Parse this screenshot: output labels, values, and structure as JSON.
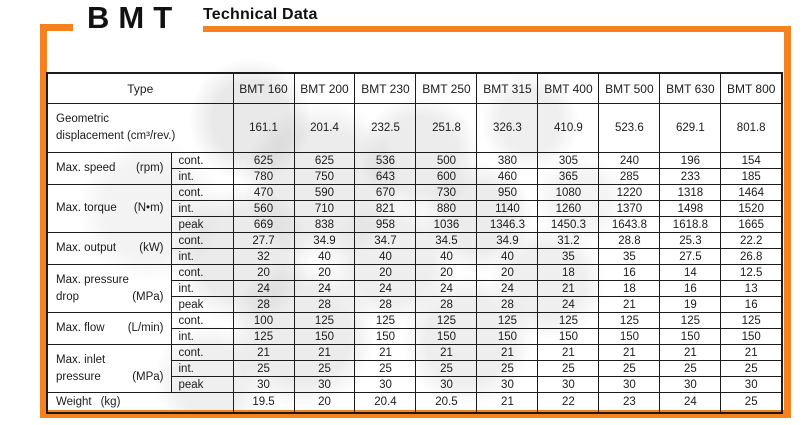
{
  "page": {
    "logo": "BMT",
    "section_title": "Technical Data"
  },
  "colors": {
    "accent": "#F6821F",
    "table_border": "#1b1b1b",
    "text": "#1b1b1b"
  },
  "table": {
    "type_label": "Type",
    "columns": [
      "BMT 160",
      "BMT 200",
      "BMT 230",
      "BMT 250",
      "BMT 315",
      "BMT 400",
      "BMT 500",
      "BMT 630",
      "BMT 800"
    ],
    "groups": [
      {
        "id": "geometric-displacement",
        "lines": [
          "Geometric",
          "displacement (cm³/rev.)"
        ],
        "unit": "",
        "layout": "plain",
        "span_label": true,
        "tall": true,
        "subrows": [
          {
            "sub": "",
            "values": [
              "161.1",
              "201.4",
              "232.5",
              "251.8",
              "326.3",
              "410.9",
              "523.6",
              "629.1",
              "801.8"
            ]
          }
        ]
      },
      {
        "id": "max-speed",
        "lines": [
          "Max. speed"
        ],
        "unit": "(rpm)",
        "layout": "between",
        "subrows": [
          {
            "sub": "cont.",
            "values": [
              "625",
              "625",
              "536",
              "500",
              "380",
              "305",
              "240",
              "196",
              "154"
            ]
          },
          {
            "sub": "int.",
            "values": [
              "780",
              "750",
              "643",
              "600",
              "460",
              "365",
              "285",
              "233",
              "185"
            ]
          }
        ]
      },
      {
        "id": "max-torque",
        "lines": [
          "Max. torque"
        ],
        "unit": "(N•m)",
        "layout": "between",
        "subrows": [
          {
            "sub": "cont.",
            "values": [
              "470",
              "590",
              "670",
              "730",
              "950",
              "1080",
              "1220",
              "1318",
              "1464"
            ]
          },
          {
            "sub": "int.",
            "values": [
              "560",
              "710",
              "821",
              "880",
              "1140",
              "1260",
              "1370",
              "1498",
              "1520"
            ]
          },
          {
            "sub": "peak",
            "values": [
              "669",
              "838",
              "958",
              "1036",
              "1346.3",
              "1450.3",
              "1643.8",
              "1618.8",
              "1665"
            ]
          }
        ]
      },
      {
        "id": "max-output",
        "lines": [
          "Max. output"
        ],
        "unit": "(kW)",
        "layout": "between",
        "subrows": [
          {
            "sub": "cont.",
            "values": [
              "27.7",
              "34.9",
              "34.7",
              "34.5",
              "34.9",
              "31.2",
              "28.8",
              "25.3",
              "22.2"
            ]
          },
          {
            "sub": "int.",
            "values": [
              "32",
              "40",
              "40",
              "40",
              "40",
              "35",
              "35",
              "27.5",
              "26.8"
            ]
          }
        ]
      },
      {
        "id": "max-pressure-drop",
        "lines": [
          "Max. pressure",
          "drop"
        ],
        "unit": "(MPa)",
        "layout": "between",
        "subrows": [
          {
            "sub": "cont.",
            "values": [
              "20",
              "20",
              "20",
              "20",
              "20",
              "18",
              "16",
              "14",
              "12.5"
            ]
          },
          {
            "sub": "int.",
            "values": [
              "24",
              "24",
              "24",
              "24",
              "24",
              "21",
              "18",
              "16",
              "13"
            ]
          },
          {
            "sub": "peak",
            "values": [
              "28",
              "28",
              "28",
              "28",
              "28",
              "24",
              "21",
              "19",
              "16"
            ]
          }
        ]
      },
      {
        "id": "max-flow",
        "lines": [
          "Max. flow"
        ],
        "unit": "(L/min)",
        "layout": "between",
        "subrows": [
          {
            "sub": "cont.",
            "values": [
              "100",
              "125",
              "125",
              "125",
              "125",
              "125",
              "125",
              "125",
              "125"
            ]
          },
          {
            "sub": "int.",
            "values": [
              "125",
              "150",
              "150",
              "150",
              "150",
              "150",
              "150",
              "150",
              "150"
            ]
          }
        ]
      },
      {
        "id": "max-inlet-pressure",
        "lines": [
          "Max. inlet",
          "pressure"
        ],
        "unit": "(MPa)",
        "layout": "between",
        "subrows": [
          {
            "sub": "cont.",
            "values": [
              "21",
              "21",
              "21",
              "21",
              "21",
              "21",
              "21",
              "21",
              "21"
            ]
          },
          {
            "sub": "int.",
            "values": [
              "25",
              "25",
              "25",
              "25",
              "25",
              "25",
              "25",
              "25",
              "25"
            ]
          },
          {
            "sub": "peak",
            "values": [
              "30",
              "30",
              "30",
              "30",
              "30",
              "30",
              "30",
              "30",
              "30"
            ]
          }
        ]
      },
      {
        "id": "weight",
        "lines": [
          "Weight"
        ],
        "unit": "(kg)",
        "layout": "inline",
        "span_label": true,
        "subrows": [
          {
            "sub": "",
            "values": [
              "19.5",
              "20",
              "20.4",
              "20.5",
              "21",
              "22",
              "23",
              "24",
              "25"
            ]
          }
        ]
      }
    ]
  }
}
